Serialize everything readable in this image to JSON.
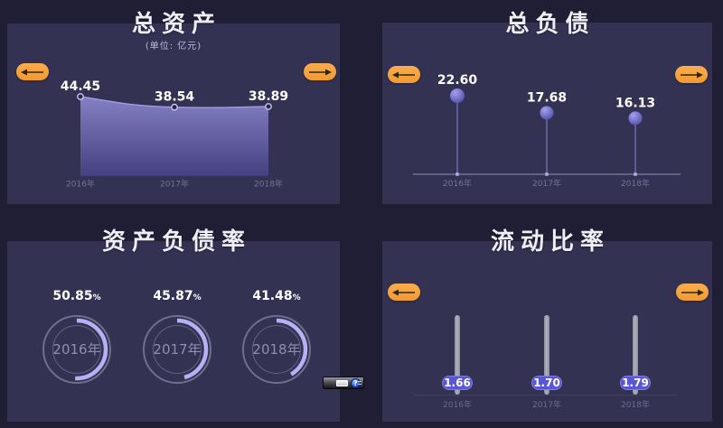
{
  "page": {
    "background": "#201e34",
    "panel_color": "#343253",
    "accent_orange": "#f5a03c",
    "lavender_arc": "#b5b1f4",
    "indigo_pill": "#5a57d4",
    "value_text_color": "#ffffff",
    "axis_text_color": "#757393"
  },
  "panels": {
    "total_assets": {
      "title": "总资产",
      "subtitle": "(单位: 亿元)",
      "years": [
        "2016年",
        "2017年",
        "2018年"
      ],
      "values_display": [
        "44.45",
        "38.54",
        "38.89"
      ],
      "nav_prev": "previous",
      "nav_next": "next"
    },
    "total_liabilities": {
      "title": "总负债",
      "years": [
        "2016年",
        "2017年",
        "2018年"
      ],
      "values_display": [
        "22.60",
        "17.68",
        "16.13"
      ],
      "nav_prev": "previous",
      "nav_next": "next"
    },
    "asset_liability_ratio": {
      "title": "资产负债率",
      "years": [
        "2016年",
        "2017年",
        "2018年"
      ],
      "values_display": [
        "50.85",
        "45.87",
        "41.48"
      ],
      "percent_sign": "%"
    },
    "current_ratio": {
      "title": "流动比率",
      "years": [
        "2016年",
        "2017年",
        "2018年"
      ],
      "values_display": [
        "1.66",
        "1.70",
        "1.79"
      ],
      "nav_prev": "previous",
      "nav_next": "next"
    }
  },
  "chart_data": [
    {
      "type": "area",
      "title": "总资产",
      "subtitle": "(单位: 亿元)",
      "unit": "亿元",
      "categories": [
        "2016年",
        "2017年",
        "2018年"
      ],
      "values": [
        44.45,
        38.54,
        38.89
      ],
      "ylim": [
        0,
        44.45
      ],
      "grid": false,
      "legend": "none"
    },
    {
      "type": "scatter",
      "title": "总负债",
      "unit": "亿元",
      "categories": [
        "2016年",
        "2017年",
        "2018年"
      ],
      "values": [
        22.6,
        17.68,
        16.13
      ],
      "ylim": [
        0,
        22.6
      ],
      "grid": false,
      "legend": "none",
      "style": "lollipop"
    },
    {
      "type": "pie",
      "title": "资产负债率",
      "unit": "%",
      "categories": [
        "2016年",
        "2017年",
        "2018年"
      ],
      "values": [
        50.85,
        45.87,
        41.48
      ],
      "ylim": [
        0,
        100
      ],
      "grid": false,
      "legend": "none",
      "style": "ring-gauge"
    },
    {
      "type": "bar",
      "title": "流动比率",
      "categories": [
        "2016年",
        "2017年",
        "2018年"
      ],
      "values": [
        1.66,
        1.7,
        1.79
      ],
      "grid": false,
      "legend": "none",
      "style": "slider-handle"
    }
  ],
  "toolbar_widget": {
    "help_label": "?"
  }
}
